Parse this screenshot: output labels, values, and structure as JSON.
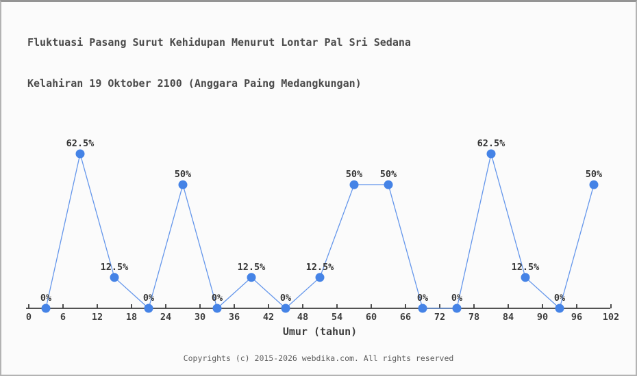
{
  "title": {
    "line1": "Fluktuasi Pasang Surut Kehidupan Menurut Lontar Pal Sri Sedana",
    "line2": "Kelahiran 19 Oktober 2100 (Anggara Paing Medangkungan)"
  },
  "footer": {
    "text": "Copyrights (c) 2015-2026 webdika.com. All rights reserved"
  },
  "chart_data": {
    "type": "line",
    "title": "Fluktuasi Pasang Surut Kehidupan Menurut Lontar Pal Sri Sedana Kelahiran 19 Oktober 2100 (Anggara Paing Medangkungan)",
    "xlabel": "Umur (tahun)",
    "ylabel": "",
    "x": [
      3,
      9,
      15,
      21,
      27,
      33,
      39,
      45,
      51,
      57,
      63,
      69,
      75,
      81,
      87,
      93,
      99
    ],
    "values": [
      0,
      62.5,
      12.5,
      0,
      50,
      0,
      12.5,
      0,
      12.5,
      50,
      50,
      0,
      0,
      62.5,
      12.5,
      0,
      50
    ],
    "point_labels": [
      "0%",
      "62.5%",
      "12.5%",
      "0%",
      "50%",
      "0%",
      "12.5%",
      "0%",
      "12.5%",
      "50%",
      "50%",
      "0%",
      "0%",
      "62.5%",
      "12.5%",
      "0%",
      "50%"
    ],
    "x_ticks": [
      0,
      6,
      12,
      18,
      24,
      30,
      36,
      42,
      48,
      54,
      60,
      66,
      72,
      78,
      84,
      90,
      96,
      102
    ],
    "xlim": [
      0,
      102
    ],
    "ylim": [
      0,
      62.5
    ],
    "grid": false,
    "legend": false,
    "colors": {
      "line": "#6496eb",
      "marker": "#4583e6",
      "axis": "#3a3a3a",
      "tick_text": "#3d3d3d",
      "label_text": "#343434",
      "title_text": "#4a4a4a",
      "footer_text": "#5c5c5c",
      "background": "#fbfbfb"
    }
  }
}
